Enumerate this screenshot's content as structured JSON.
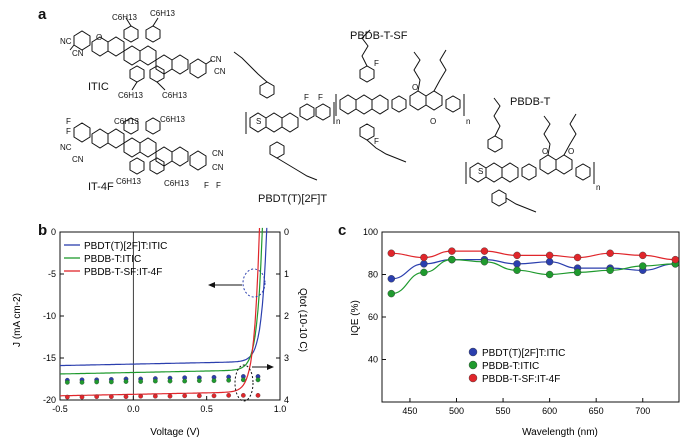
{
  "panels": {
    "a": "a",
    "b": "b",
    "c": "c"
  },
  "molecules": {
    "itic": "ITIC",
    "it4f": "IT-4F",
    "pbdtt2ft": "PBDT(T)[2F]T",
    "pbdbtsf": "PBDB-T-SF",
    "pbdbt": "PBDB-T"
  },
  "chem_labels": {
    "c6h13": "C6H13",
    "cn": "CN",
    "nc": "NC",
    "s": "S",
    "o": "O",
    "f": "F",
    "n": "n"
  },
  "colors": {
    "blue": "#2b3fae",
    "green": "#1f9a2e",
    "red": "#e0262b"
  },
  "chart_data": [
    {
      "type": "line",
      "title": "",
      "xlabel": "Voltage (V)",
      "ylabel": "J (mA cm-2)",
      "y2label": "Qtot (10-10 C)",
      "xlim": [
        -0.5,
        1.0
      ],
      "ylim": [
        -20,
        0
      ],
      "y2lim": [
        0,
        4
      ],
      "xticks": [
        "-0.5",
        "0.0",
        "0.5",
        "1.0"
      ],
      "yticks": [
        "0",
        "-5",
        "-10",
        "-15",
        "-20"
      ],
      "y2ticks": [
        "0",
        "1",
        "2",
        "3",
        "4"
      ],
      "legend": [
        "PBDT(T)[2F]T:ITIC",
        "PBDB-T:ITIC",
        "PBDB-T-SF:IT-4F"
      ],
      "series": [
        {
          "name": "PBDT(T)[2F]T:ITIC",
          "color": "#2b3fae",
          "jsc": -15.9,
          "voc": 0.91,
          "qtot_x": [
            -0.45,
            -0.35,
            -0.25,
            -0.15,
            -0.05,
            0.05,
            0.15,
            0.25,
            0.35,
            0.45,
            0.55,
            0.65,
            0.75,
            0.85
          ],
          "qtot": [
            3.53,
            3.52,
            3.52,
            3.51,
            3.5,
            3.5,
            3.49,
            3.48,
            3.47,
            3.47,
            3.46,
            3.45,
            3.44,
            3.44
          ]
        },
        {
          "name": "PBDB-T:ITIC",
          "color": "#1f9a2e",
          "jsc": -16.9,
          "voc": 0.88,
          "qtot_x": [
            -0.45,
            -0.35,
            -0.25,
            -0.15,
            -0.05,
            0.05,
            0.15,
            0.25,
            0.35,
            0.45,
            0.55,
            0.65,
            0.75,
            0.85
          ],
          "qtot": [
            3.58,
            3.58,
            3.57,
            3.57,
            3.56,
            3.56,
            3.55,
            3.55,
            3.55,
            3.54,
            3.54,
            3.53,
            3.52,
            3.52
          ]
        },
        {
          "name": "PBDB-T-SF:IT-4F",
          "color": "#e0262b",
          "jsc": -19.5,
          "voc": 0.86,
          "qtot_x": [
            -0.45,
            -0.35,
            -0.25,
            -0.15,
            -0.05,
            0.05,
            0.15,
            0.25,
            0.35,
            0.45,
            0.55,
            0.65,
            0.75,
            0.85
          ],
          "qtot": [
            3.93,
            3.93,
            3.92,
            3.92,
            3.92,
            3.91,
            3.91,
            3.91,
            3.9,
            3.9,
            3.9,
            3.89,
            3.89,
            3.89
          ]
        }
      ]
    },
    {
      "type": "line",
      "title": "",
      "xlabel": "Wavelength (nm)",
      "ylabel": "IQE (%)",
      "xlim": [
        420,
        740
      ],
      "ylim": [
        20,
        100
      ],
      "xticks": [
        "450",
        "500",
        "550",
        "600",
        "650",
        "700"
      ],
      "yticks": [
        "40",
        "60",
        "80",
        "100"
      ],
      "legend": [
        "PBDT(T)[2F]T:ITIC",
        "PBDB-T:ITIC",
        "PBDB-T-SF:IT-4F"
      ],
      "x": [
        430,
        465,
        495,
        530,
        565,
        600,
        630,
        665,
        700,
        735
      ],
      "series": [
        {
          "name": "PBDT(T)[2F]T:ITIC",
          "color": "#2b3fae",
          "values": [
            78,
            85,
            87,
            87,
            85,
            86,
            83,
            83,
            82,
            85
          ]
        },
        {
          "name": "PBDB-T:ITIC",
          "color": "#1f9a2e",
          "values": [
            71,
            81,
            87,
            86,
            82,
            80,
            81,
            82,
            84,
            85
          ]
        },
        {
          "name": "PBDB-T-SF:IT-4F",
          "color": "#e0262b",
          "values": [
            90,
            88,
            91,
            91,
            89,
            89,
            88,
            90,
            89,
            87
          ]
        }
      ]
    }
  ]
}
